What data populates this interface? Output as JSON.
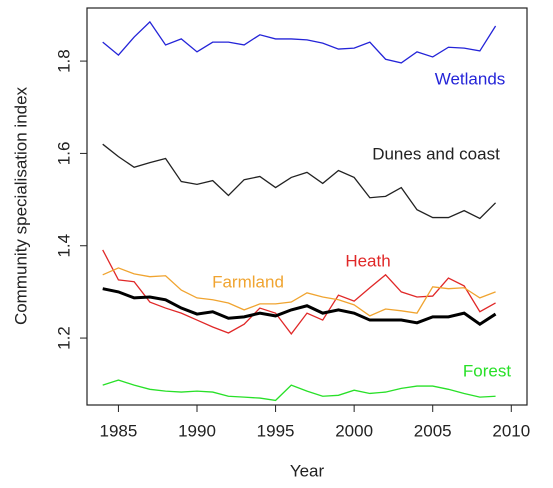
{
  "chart_data": {
    "type": "line",
    "x_label": "Year",
    "y_label": "Community specialisation index",
    "x": [
      1984,
      1985,
      1986,
      1987,
      1988,
      1989,
      1990,
      1991,
      1992,
      1993,
      1994,
      1995,
      1996,
      1997,
      1998,
      1999,
      2000,
      2001,
      2002,
      2003,
      2004,
      2005,
      2006,
      2007,
      2008,
      2009
    ],
    "xlim": [
      1983,
      2011
    ],
    "xticks": [
      1985,
      1990,
      1995,
      2000,
      2005,
      2010
    ],
    "ylim": [
      1.055,
      1.915
    ],
    "yticks": [
      1.2,
      1.4,
      1.6,
      1.8
    ],
    "series": [
      {
        "name": "Wetlands",
        "color": "#2424d8",
        "values": [
          1.841,
          1.813,
          1.852,
          1.885,
          1.835,
          1.848,
          1.82,
          1.841,
          1.841,
          1.835,
          1.857,
          1.848,
          1.848,
          1.846,
          1.839,
          1.826,
          1.828,
          1.841,
          1.804,
          1.796,
          1.82,
          1.809,
          1.83,
          1.828,
          1.822,
          1.876
        ]
      },
      {
        "name": "Dunes and coast",
        "color": "#222222",
        "values": [
          1.62,
          1.593,
          1.57,
          1.58,
          1.589,
          1.539,
          1.533,
          1.541,
          1.509,
          1.543,
          1.55,
          1.526,
          1.548,
          1.559,
          1.535,
          1.563,
          1.548,
          1.504,
          1.507,
          1.526,
          1.478,
          1.461,
          1.461,
          1.476,
          1.459,
          1.493
        ]
      },
      {
        "name": "Heath",
        "color": "#e02828",
        "values": [
          1.391,
          1.326,
          1.322,
          1.278,
          1.265,
          1.254,
          1.239,
          1.224,
          1.211,
          1.23,
          1.265,
          1.254,
          1.209,
          1.254,
          1.239,
          1.293,
          1.28,
          1.309,
          1.337,
          1.3,
          1.289,
          1.291,
          1.33,
          1.313,
          1.257,
          1.276
        ]
      },
      {
        "name": "Farmland",
        "color": "#f0a430",
        "values": [
          1.337,
          1.352,
          1.339,
          1.333,
          1.335,
          1.304,
          1.287,
          1.283,
          1.276,
          1.261,
          1.274,
          1.274,
          1.278,
          1.298,
          1.289,
          1.283,
          1.272,
          1.248,
          1.263,
          1.259,
          1.254,
          1.311,
          1.307,
          1.309,
          1.287,
          1.3
        ]
      },
      {
        "name": "Forest",
        "color": "#28e028",
        "values": [
          1.098,
          1.109,
          1.098,
          1.089,
          1.085,
          1.083,
          1.085,
          1.083,
          1.074,
          1.072,
          1.07,
          1.065,
          1.098,
          1.085,
          1.074,
          1.076,
          1.087,
          1.08,
          1.083,
          1.091,
          1.096,
          1.096,
          1.089,
          1.08,
          1.072,
          1.074
        ]
      },
      {
        "color": "#000000",
        "values": [
          1.307,
          1.3,
          1.287,
          1.289,
          1.283,
          1.265,
          1.252,
          1.257,
          1.243,
          1.246,
          1.254,
          1.248,
          1.261,
          1.27,
          1.254,
          1.261,
          1.254,
          1.239,
          1.239,
          1.239,
          1.233,
          1.246,
          1.246,
          1.254,
          1.23,
          1.252
        ]
      }
    ]
  }
}
